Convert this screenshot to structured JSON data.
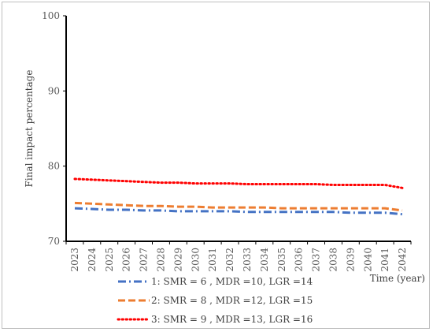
{
  "chart_data": {
    "type": "line",
    "title": "",
    "xlabel": "Time (year)",
    "ylabel": "Final impact percentage",
    "ylim": [
      70,
      100
    ],
    "yticks": [
      70,
      80,
      90,
      100
    ],
    "x": [
      "2023",
      "2024",
      "2025",
      "2026",
      "2027",
      "2028",
      "2029",
      "2030",
      "2031",
      "2032",
      "2033",
      "2034",
      "2035",
      "2036",
      "2037",
      "2038",
      "2039",
      "2040",
      "2041",
      "2042"
    ],
    "grid": false,
    "legend_position": "bottom",
    "series": [
      {
        "name": "1: SMR = 6 , MDR =10, LGR =14",
        "color": "#4472C4",
        "dash": "dash-dot",
        "values": [
          74.4,
          74.3,
          74.2,
          74.2,
          74.1,
          74.1,
          74.0,
          74.0,
          74.0,
          74.0,
          73.9,
          73.9,
          73.9,
          73.9,
          73.9,
          73.9,
          73.8,
          73.8,
          73.8,
          73.6
        ]
      },
      {
        "name": "2: SMR = 8 , MDR =12, LGR =15",
        "color": "#ED7D31",
        "dash": "dashed",
        "values": [
          75.1,
          75.0,
          74.9,
          74.8,
          74.7,
          74.7,
          74.6,
          74.6,
          74.5,
          74.5,
          74.5,
          74.5,
          74.4,
          74.4,
          74.4,
          74.4,
          74.4,
          74.4,
          74.4,
          74.1
        ]
      },
      {
        "name": "3: SMR = 9 , MDR =13, LGR =16",
        "color": "#FF0000",
        "dash": "dotted",
        "values": [
          78.3,
          78.2,
          78.1,
          78.0,
          77.9,
          77.8,
          77.8,
          77.7,
          77.7,
          77.7,
          77.6,
          77.6,
          77.6,
          77.6,
          77.6,
          77.5,
          77.5,
          77.5,
          77.5,
          77.1
        ]
      }
    ]
  }
}
